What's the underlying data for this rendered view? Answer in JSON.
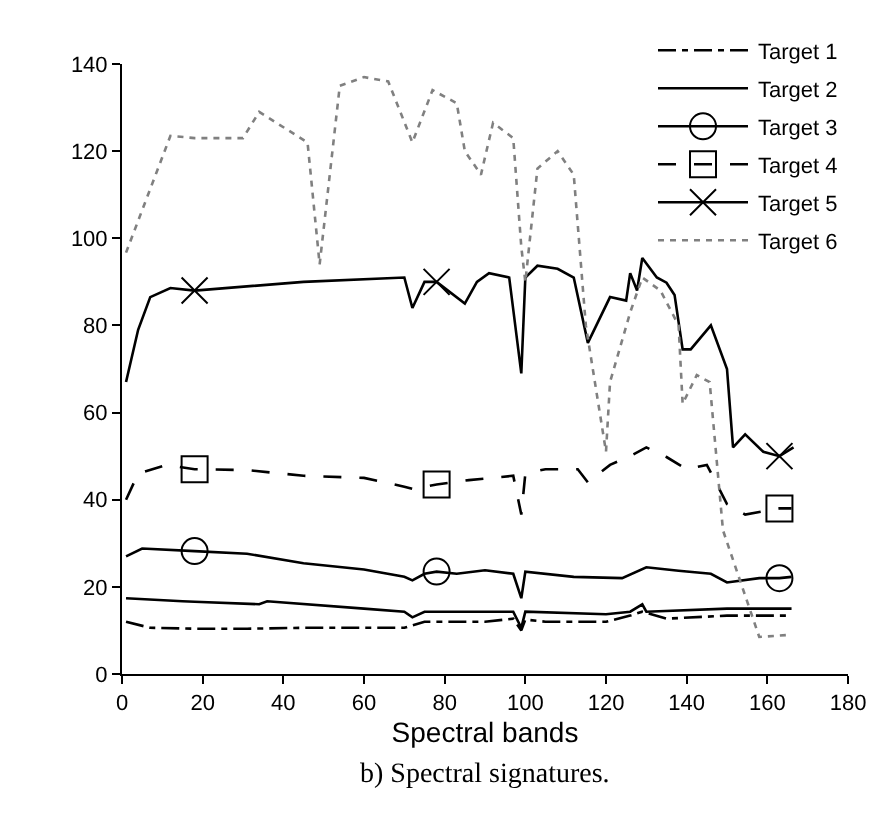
{
  "chart_data": {
    "type": "line",
    "xlabel": "Spectral bands",
    "annotations": [
      "b) Spectral signatures."
    ],
    "xlim": [
      0,
      180
    ],
    "xticks": [
      0,
      20,
      40,
      60,
      80,
      100,
      120,
      140,
      160,
      180
    ],
    "ylim": [
      0,
      140
    ],
    "yticks": [
      0,
      20,
      40,
      60,
      80,
      100,
      120,
      140
    ],
    "legend": "top right",
    "series": [
      {
        "name": "Target 1",
        "color": "#000000",
        "line_style": "dashdot",
        "x": [
          1,
          7,
          18,
          31,
          45,
          60,
          70,
          75,
          78,
          90,
          97,
          99,
          100,
          105,
          120,
          126,
          129,
          135,
          150,
          163,
          166
        ],
        "values": [
          12,
          10.6,
          10.4,
          10.4,
          10.6,
          10.6,
          10.6,
          12,
          12,
          12,
          12.7,
          10,
          12.5,
          12,
          12,
          13.4,
          14.3,
          12.7,
          13.4,
          13.4,
          13.4
        ]
      },
      {
        "name": "Target 2",
        "color": "#000000",
        "line_style": "solid",
        "x": [
          1,
          15,
          18,
          34,
          36,
          60,
          70,
          72,
          75,
          78,
          90,
          97,
          99,
          100,
          120,
          126,
          129,
          130,
          150,
          163,
          166
        ],
        "values": [
          17.4,
          16.7,
          16.6,
          16,
          16.7,
          15,
          14.3,
          13,
          14.3,
          14.3,
          14.3,
          14.3,
          10.6,
          14.3,
          13.7,
          14.3,
          16,
          14.3,
          15,
          15,
          15
        ]
      },
      {
        "name": "Target 3",
        "color": "#000000",
        "line_style": "solid",
        "x": [
          1,
          5,
          18,
          31,
          45,
          60,
          70,
          72,
          75,
          78,
          83,
          90,
          97,
          99,
          100,
          112,
          124,
          130,
          138,
          146,
          150,
          158,
          163,
          166
        ],
        "values": [
          27,
          28.8,
          28.2,
          27.6,
          25.4,
          24,
          22.3,
          21.5,
          23,
          23.5,
          23,
          23.8,
          23,
          17.4,
          23.5,
          22.3,
          22,
          24.5,
          23.7,
          23,
          21,
          22,
          22,
          22.3
        ]
      },
      {
        "type": "scatter",
        "color": "#000000",
        "marker": "circle",
        "x": [
          18,
          78,
          163
        ],
        "values": [
          28.2,
          23.5,
          22
        ]
      },
      {
        "name": "Target 4",
        "color": "#000000",
        "line_style": "dashed",
        "x": [
          1,
          4,
          11,
          18,
          31,
          45,
          60,
          70,
          72,
          78,
          86,
          97,
          99,
          100,
          105,
          113,
          115.5,
          121,
          126,
          130,
          135,
          140,
          145,
          150,
          154.5,
          163,
          166
        ],
        "values": [
          40,
          46,
          48,
          47,
          46.8,
          45.5,
          45,
          43,
          42.5,
          43.5,
          44.5,
          45.5,
          36.6,
          46,
          47,
          47,
          44,
          48,
          50,
          52,
          49.8,
          47,
          48,
          39,
          36.6,
          38,
          38
        ]
      },
      {
        "type": "scatter",
        "color": "#000000",
        "marker": "square",
        "x": [
          18,
          78,
          163
        ],
        "values": [
          47,
          43.5,
          38
        ]
      },
      {
        "name": "Target 5",
        "color": "#000000",
        "line_style": "solid",
        "x": [
          1,
          4,
          7,
          12,
          18,
          45,
          70,
          72,
          75,
          78,
          85,
          88,
          91,
          96,
          99,
          100,
          103,
          108,
          112,
          115.5,
          121,
          125,
          126,
          127.7,
          129,
          132.6,
          135,
          137,
          139,
          141,
          146,
          150,
          151.5,
          154.5,
          159,
          163,
          166.5
        ],
        "values": [
          67,
          79,
          86.5,
          88.6,
          88,
          90,
          91,
          84,
          90,
          90,
          85,
          90,
          92,
          91,
          69,
          91,
          93.7,
          93,
          91,
          76,
          86.5,
          85.7,
          92,
          88,
          95.5,
          91,
          89.8,
          87,
          74.5,
          74.5,
          80,
          70,
          52,
          55,
          51,
          50,
          52
        ]
      },
      {
        "type": "scatter",
        "color": "#000000",
        "marker": "cross",
        "x": [
          18,
          78,
          163
        ],
        "values": [
          88,
          90,
          50
        ]
      },
      {
        "name": "Target 6",
        "color": "#808080",
        "line_style": "dotted",
        "x": [
          1,
          12,
          18,
          30,
          34,
          46,
          49,
          54,
          60,
          66,
          72,
          77,
          83,
          85,
          89,
          92,
          97,
          99,
          100,
          103,
          108,
          112,
          115,
          120,
          121,
          126,
          129,
          133.5,
          138,
          139,
          142.5,
          145.7,
          149,
          154.5,
          158,
          166
        ],
        "values": [
          96.7,
          123.5,
          123,
          123,
          129,
          122,
          94,
          135,
          137,
          136,
          122,
          134,
          131,
          120,
          114.6,
          126.5,
          123,
          98,
          90,
          116,
          120,
          114.6,
          80,
          51,
          67,
          83,
          91,
          88,
          80,
          62,
          68.6,
          67,
          33,
          18,
          8.5,
          9
        ]
      }
    ]
  }
}
